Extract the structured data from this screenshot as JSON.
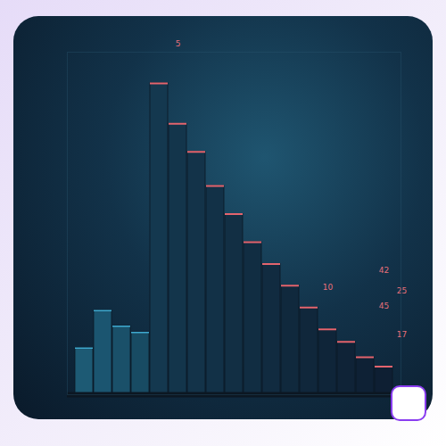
{
  "chart_data": {
    "type": "bar",
    "categories": [
      null,
      null,
      null,
      null,
      null,
      null,
      null,
      null,
      null,
      null,
      null,
      null,
      null,
      null,
      null,
      null,
      null
    ],
    "values": [
      15,
      27,
      22,
      20,
      100,
      87,
      78,
      67,
      58,
      49,
      42,
      35,
      28,
      21,
      17,
      12,
      9
    ],
    "colors": [
      "#1d5a74",
      "#1b5570",
      "#1a5069",
      "#184b63",
      "#14384f",
      "#13354b",
      "#133349",
      "#123147",
      "#122f44",
      "#112d42",
      "#112b40",
      "#10293d",
      "#10273b",
      "#0f2539",
      "#0f2337",
      "#0e2135",
      "#0e1f33"
    ],
    "ylim": [
      0,
      110
    ],
    "grid": false,
    "tick_labels": false,
    "annotations": [
      "5",
      "42",
      "25",
      "45",
      "10",
      "17"
    ]
  }
}
